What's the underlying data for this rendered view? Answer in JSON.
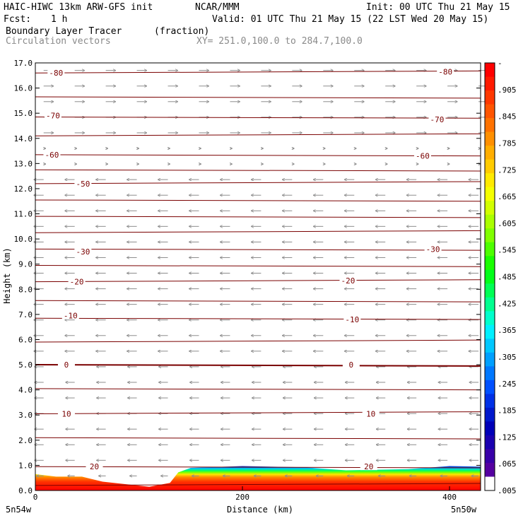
{
  "header": {
    "model": "HAIC-HIWC 13km ARW-GFS init",
    "org": "NCAR/MMM",
    "init": "Init: 00 UTC Thu 21 May 15",
    "fcst_label": "Fcst:",
    "fcst_value": "1 h",
    "valid": "Valid: 01 UTC Thu 21 May 15 (22 LST Wed 20 May 15)",
    "field": "Boundary Layer Tracer",
    "units": "(fraction)",
    "vectors": "Circulation vectors",
    "xy": "XY= 251.0,100.0 to 284.7,100.0"
  },
  "colorbar": {
    "labels": [
      "-",
      ".905",
      ".845",
      ".785",
      ".725",
      ".665",
      ".605",
      ".545",
      ".485",
      ".425",
      ".365",
      ".305",
      ".245",
      ".185",
      ".125",
      ".065",
      ".005"
    ],
    "colors": [
      "#ff0000",
      "#ff1a00",
      "#ff3800",
      "#ff5500",
      "#ff7200",
      "#ff9000",
      "#ffae00",
      "#ffcc00",
      "#ffea00",
      "#f5ff00",
      "#d2ff00",
      "#aaff00",
      "#80ff00",
      "#4dff00",
      "#1aff00",
      "#00ff1a",
      "#00ff55",
      "#00ff90",
      "#00ffcc",
      "#00f0ff",
      "#00c8ff",
      "#00a0ff",
      "#0078ff",
      "#0050ff",
      "#0030e6",
      "#0018cc",
      "#0000b8",
      "#1a00b0",
      "#3800a8",
      "#5500a0",
      "#ffffff"
    ]
  },
  "chart_data": {
    "type": "cross-section",
    "title": "Boundary Layer Tracer",
    "ylabel": "Height (km)",
    "xlabel": "Distance (km)",
    "ylim": [
      0,
      17
    ],
    "xlim": [
      0,
      430
    ],
    "yticks": [
      "0.0",
      "1.0",
      "2.0",
      "3.0",
      "4.0",
      "5.0",
      "6.0",
      "7.0",
      "8.0",
      "9.0",
      "10.0",
      "11.0",
      "12.0",
      "13.0",
      "14.0",
      "15.0",
      "16.0",
      "17.0"
    ],
    "xticks": [
      "0",
      "200",
      "400"
    ],
    "x_end_labels": [
      "5n54w",
      "5n50w"
    ],
    "contour_labels": [
      {
        "text": "-80",
        "x": 20,
        "y": 16.6
      },
      {
        "text": "-80",
        "x": 396,
        "y": 16.65
      },
      {
        "text": "-70",
        "x": 17,
        "y": 14.9
      },
      {
        "text": "-70",
        "x": 388,
        "y": 14.75
      },
      {
        "text": "-60",
        "x": 16,
        "y": 13.35
      },
      {
        "text": "-60",
        "x": 374,
        "y": 13.3
      },
      {
        "text": "-50",
        "x": 46,
        "y": 12.2
      },
      {
        "text": "-30",
        "x": 46,
        "y": 9.5
      },
      {
        "text": "-30",
        "x": 384,
        "y": 9.6
      },
      {
        "text": "-20",
        "x": 40,
        "y": 8.3
      },
      {
        "text": "-20",
        "x": 302,
        "y": 8.35
      },
      {
        "text": "-10",
        "x": 34,
        "y": 6.95
      },
      {
        "text": "-10",
        "x": 306,
        "y": 6.8
      },
      {
        "text": "0",
        "x": 30,
        "y": 5.0
      },
      {
        "text": "0",
        "x": 305,
        "y": 5.0
      },
      {
        "text": "10",
        "x": 30,
        "y": 3.05
      },
      {
        "text": "10",
        "x": 324,
        "y": 3.05
      },
      {
        "text": "20",
        "x": 57,
        "y": 0.95
      },
      {
        "text": "20",
        "x": 322,
        "y": 0.95
      }
    ]
  }
}
